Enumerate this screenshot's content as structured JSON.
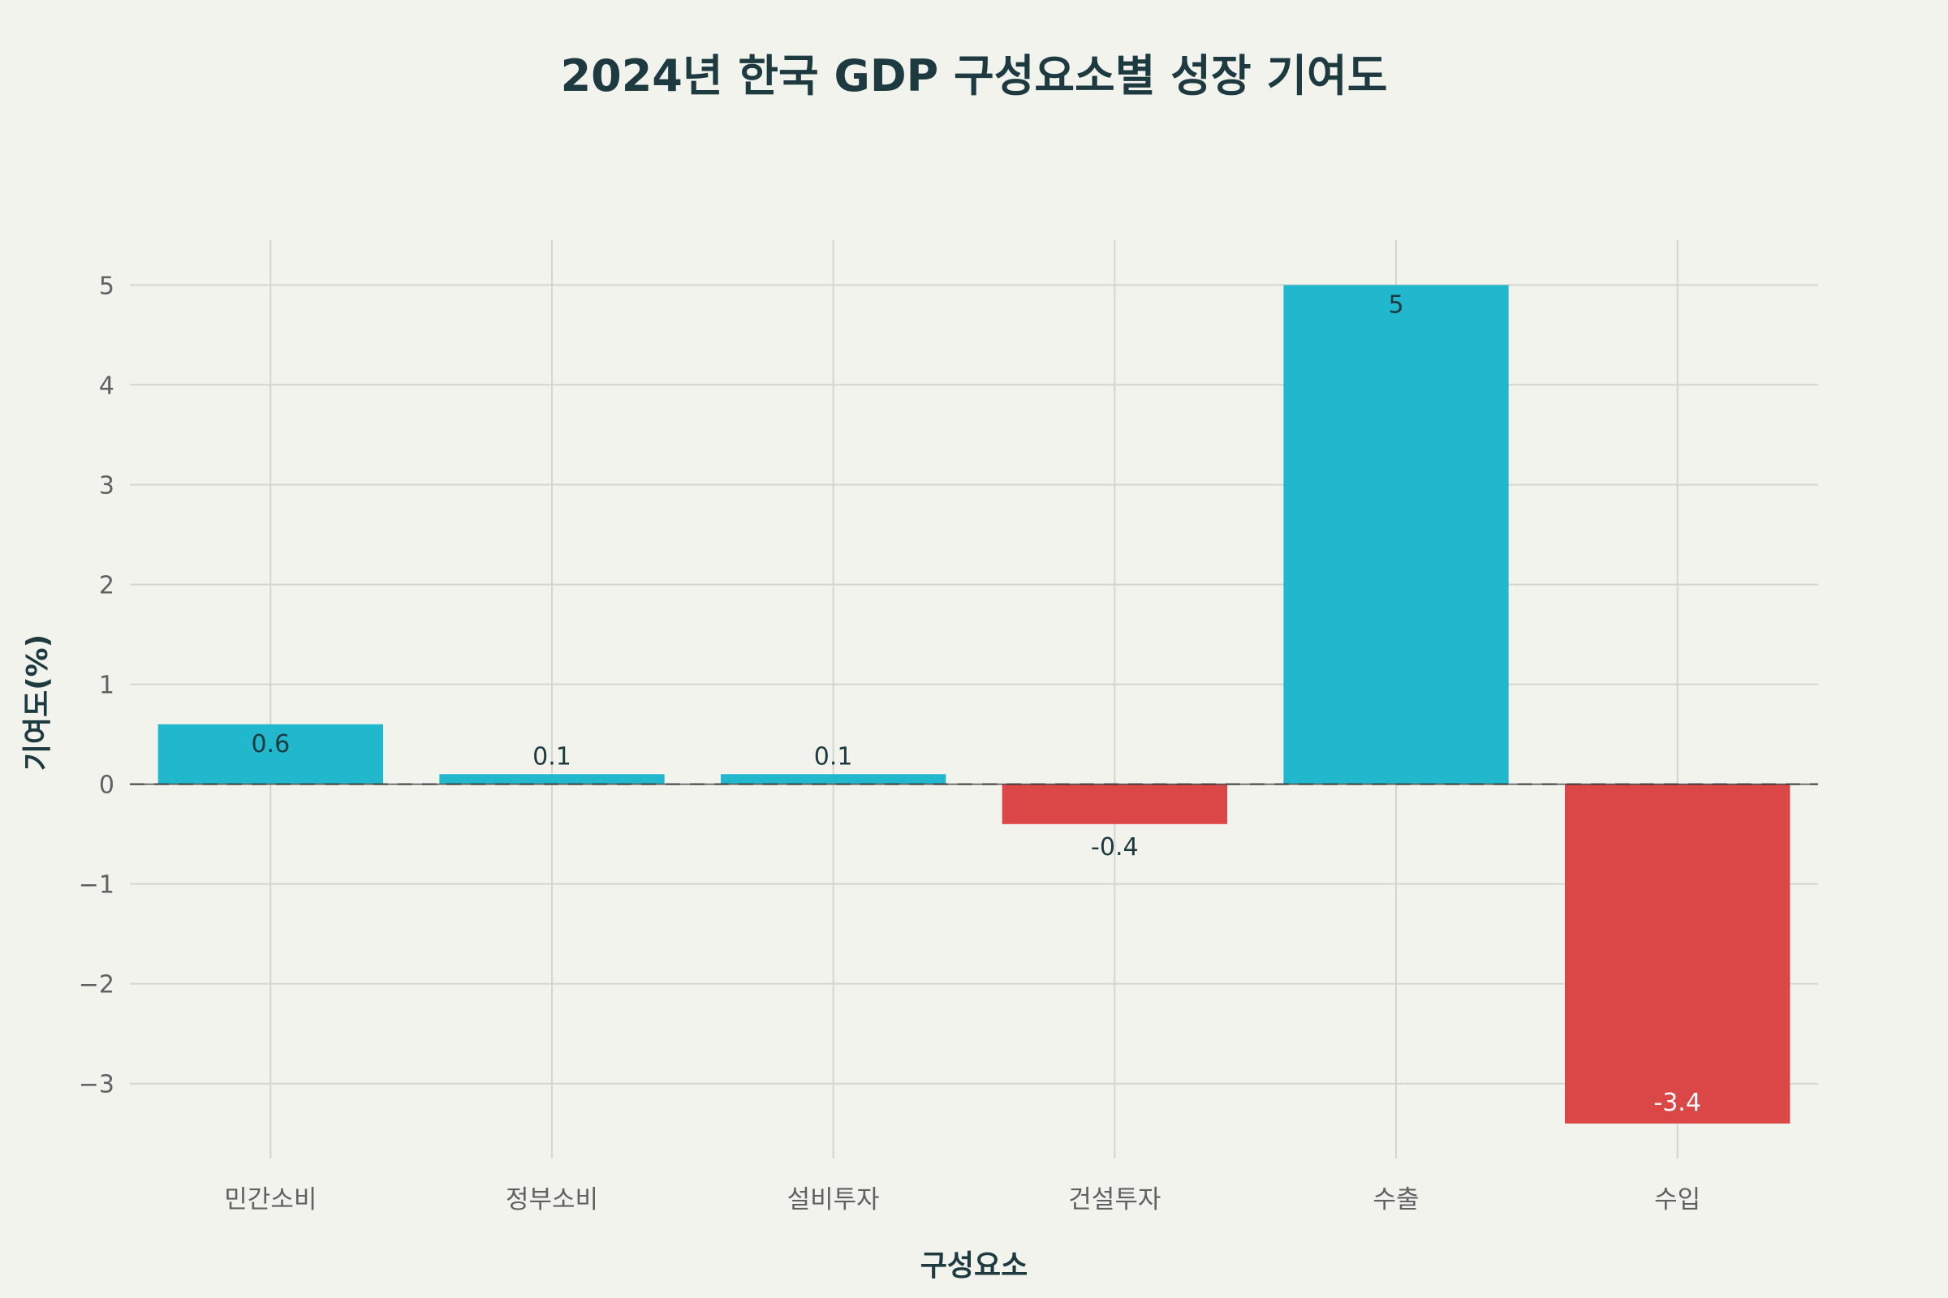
{
  "chart_data": {
    "type": "bar",
    "title": "2024년 한국 GDP 구성요소별 성장 기여도",
    "xlabel": "구성요소",
    "ylabel": "기여도(%)",
    "categories": [
      "민간소비",
      "정부소비",
      "설비투자",
      "건설투자",
      "수출",
      "수입"
    ],
    "values": [
      0.6,
      0.1,
      0.1,
      -0.4,
      5,
      -3.4
    ],
    "value_labels": [
      "0.6",
      "0.1",
      "0.1",
      "-0.4",
      "5",
      "-3.4"
    ],
    "y_ticks": [
      5,
      4,
      3,
      2,
      1,
      0,
      -1,
      -2,
      -3
    ],
    "y_tick_labels": [
      "5",
      "4",
      "3",
      "2",
      "1",
      "0",
      "−1",
      "−2",
      "−3"
    ],
    "ylim": [
      -3.75,
      5.45
    ],
    "grid": true,
    "zero_line": "dashed",
    "colors": {
      "positive": "#21b8ce",
      "negative": "#db4646",
      "background": "#f3f3ee",
      "grid": "#d4d5d1",
      "text": "#1c3a40",
      "tick_text": "#5f6163"
    }
  }
}
